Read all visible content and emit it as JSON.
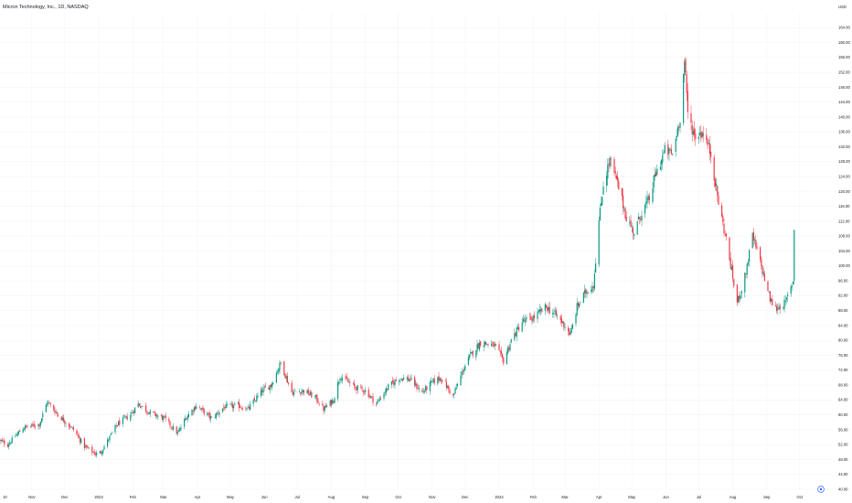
{
  "header": {
    "title": "Micron Technology, Inc., 1D, NASDAQ",
    "currency": "USD"
  },
  "colors": {
    "up": "#089981",
    "down": "#f23645",
    "background": "#ffffff",
    "grid": "#f3f4f6",
    "text": "#131722",
    "marker": "#2962ff"
  },
  "footer": {
    "marker_icon": "target-icon"
  },
  "chart_data": {
    "type": "candlestick",
    "title": "Micron Technology, Inc., 1D, NASDAQ",
    "y_axis_label": "USD",
    "ylim": [
      40,
      168
    ],
    "y_ticks": [
      "40.00",
      "44.00",
      "48.00",
      "52.00",
      "56.00",
      "60.00",
      "64.00",
      "68.00",
      "72.00",
      "76.00",
      "80.00",
      "84.00",
      "88.00",
      "92.00",
      "96.00",
      "100.00",
      "104.00",
      "108.00",
      "112.00",
      "116.00",
      "120.00",
      "124.00",
      "128.00",
      "132.00",
      "136.00",
      "140.00",
      "144.00",
      "148.00",
      "152.00",
      "156.00",
      "160.00",
      "164.00"
    ],
    "x_ticks": [
      {
        "label": "10",
        "date": "2022-10-10"
      },
      {
        "label": "Nov",
        "date": "2022-11-01"
      },
      {
        "label": "Dec",
        "date": "2022-12-01"
      },
      {
        "label": "2023",
        "date": "2023-01-01"
      },
      {
        "label": "Feb",
        "date": "2023-02-01"
      },
      {
        "label": "Mar",
        "date": "2023-03-01"
      },
      {
        "label": "Apr",
        "date": "2023-04-01"
      },
      {
        "label": "May",
        "date": "2023-05-01"
      },
      {
        "label": "Jun",
        "date": "2023-06-01"
      },
      {
        "label": "Jul",
        "date": "2023-07-01"
      },
      {
        "label": "Aug",
        "date": "2023-08-01"
      },
      {
        "label": "Sep",
        "date": "2023-09-01"
      },
      {
        "label": "Oct",
        "date": "2023-10-01"
      },
      {
        "label": "Nov",
        "date": "2023-11-01"
      },
      {
        "label": "Dec",
        "date": "2023-12-01"
      },
      {
        "label": "2024",
        "date": "2024-01-01"
      },
      {
        "label": "Feb",
        "date": "2024-02-01"
      },
      {
        "label": "Mar",
        "date": "2024-03-01"
      },
      {
        "label": "Apr",
        "date": "2024-04-01"
      },
      {
        "label": "May",
        "date": "2024-05-01"
      },
      {
        "label": "Jun",
        "date": "2024-06-01"
      },
      {
        "label": "Jul",
        "date": "2024-07-01"
      },
      {
        "label": "Aug",
        "date": "2024-08-01"
      },
      {
        "label": "Sep",
        "date": "2024-09-01"
      },
      {
        "label": "Oct",
        "date": "2024-10-01"
      }
    ],
    "close_path": [
      {
        "date": "2022-10-03",
        "close": 53.0
      },
      {
        "date": "2022-10-10",
        "close": 52.0
      },
      {
        "date": "2022-10-24",
        "close": 56.5
      },
      {
        "date": "2022-11-08",
        "close": 57.5
      },
      {
        "date": "2022-11-15",
        "close": 63.5
      },
      {
        "date": "2022-11-25",
        "close": 60.0
      },
      {
        "date": "2022-12-09",
        "close": 56.0
      },
      {
        "date": "2022-12-19",
        "close": 51.5
      },
      {
        "date": "2022-12-29",
        "close": 49.5
      },
      {
        "date": "2023-01-03",
        "close": 50.0
      },
      {
        "date": "2023-01-18",
        "close": 57.5
      },
      {
        "date": "2023-01-30",
        "close": 60.0
      },
      {
        "date": "2023-02-06",
        "close": 63.0
      },
      {
        "date": "2023-02-17",
        "close": 60.5
      },
      {
        "date": "2023-03-02",
        "close": 59.0
      },
      {
        "date": "2023-03-14",
        "close": 55.0
      },
      {
        "date": "2023-03-22",
        "close": 59.5
      },
      {
        "date": "2023-03-31",
        "close": 62.5
      },
      {
        "date": "2023-04-14",
        "close": 59.0
      },
      {
        "date": "2023-04-25",
        "close": 62.0
      },
      {
        "date": "2023-05-08",
        "close": 62.5
      },
      {
        "date": "2023-05-17",
        "close": 61.5
      },
      {
        "date": "2023-05-30",
        "close": 66.5
      },
      {
        "date": "2023-06-07",
        "close": 68.0
      },
      {
        "date": "2023-06-16",
        "close": 74.0
      },
      {
        "date": "2023-06-26",
        "close": 66.0
      },
      {
        "date": "2023-07-07",
        "close": 66.5
      },
      {
        "date": "2023-07-18",
        "close": 64.5
      },
      {
        "date": "2023-07-25",
        "close": 61.5
      },
      {
        "date": "2023-08-03",
        "close": 64.0
      },
      {
        "date": "2023-08-09",
        "close": 70.5
      },
      {
        "date": "2023-08-22",
        "close": 67.5
      },
      {
        "date": "2023-09-01",
        "close": 66.5
      },
      {
        "date": "2023-09-11",
        "close": 63.0
      },
      {
        "date": "2023-09-22",
        "close": 67.5
      },
      {
        "date": "2023-10-02",
        "close": 70.0
      },
      {
        "date": "2023-10-12",
        "close": 69.5
      },
      {
        "date": "2023-10-23",
        "close": 66.0
      },
      {
        "date": "2023-11-02",
        "close": 69.0
      },
      {
        "date": "2023-11-09",
        "close": 70.0
      },
      {
        "date": "2023-11-20",
        "close": 65.0
      },
      {
        "date": "2023-11-29",
        "close": 72.0
      },
      {
        "date": "2023-12-06",
        "close": 76.0
      },
      {
        "date": "2023-12-15",
        "close": 79.5
      },
      {
        "date": "2023-12-28",
        "close": 78.5
      },
      {
        "date": "2024-01-05",
        "close": 74.5
      },
      {
        "date": "2024-01-12",
        "close": 80.0
      },
      {
        "date": "2024-01-22",
        "close": 85.0
      },
      {
        "date": "2024-02-01",
        "close": 86.0
      },
      {
        "date": "2024-02-13",
        "close": 89.0
      },
      {
        "date": "2024-02-21",
        "close": 87.0
      },
      {
        "date": "2024-03-01",
        "close": 84.0
      },
      {
        "date": "2024-03-06",
        "close": 81.5
      },
      {
        "date": "2024-03-12",
        "close": 89.0
      },
      {
        "date": "2024-03-20",
        "close": 93.0
      },
      {
        "date": "2024-03-27",
        "close": 95.0
      },
      {
        "date": "2024-04-01",
        "close": 112.0
      },
      {
        "date": "2024-04-05",
        "close": 122.0
      },
      {
        "date": "2024-04-11",
        "close": 128.5
      },
      {
        "date": "2024-04-19",
        "close": 121.0
      },
      {
        "date": "2024-04-26",
        "close": 113.0
      },
      {
        "date": "2024-05-03",
        "close": 109.0
      },
      {
        "date": "2024-05-10",
        "close": 114.5
      },
      {
        "date": "2024-05-17",
        "close": 118.0
      },
      {
        "date": "2024-05-22",
        "close": 124.0
      },
      {
        "date": "2024-05-31",
        "close": 131.0
      },
      {
        "date": "2024-06-07",
        "close": 130.0
      },
      {
        "date": "2024-06-14",
        "close": 140.0
      },
      {
        "date": "2024-06-18",
        "close": 155.0
      },
      {
        "date": "2024-06-21",
        "close": 141.0
      },
      {
        "date": "2024-06-27",
        "close": 135.0
      },
      {
        "date": "2024-07-05",
        "close": 136.0
      },
      {
        "date": "2024-07-12",
        "close": 130.0
      },
      {
        "date": "2024-07-19",
        "close": 117.0
      },
      {
        "date": "2024-07-26",
        "close": 107.0
      },
      {
        "date": "2024-08-05",
        "close": 90.0
      },
      {
        "date": "2024-08-12",
        "close": 97.0
      },
      {
        "date": "2024-08-19",
        "close": 108.0
      },
      {
        "date": "2024-08-26",
        "close": 101.0
      },
      {
        "date": "2024-09-04",
        "close": 91.0
      },
      {
        "date": "2024-09-09",
        "close": 88.5
      },
      {
        "date": "2024-09-18",
        "close": 90.0
      },
      {
        "date": "2024-09-25",
        "close": 96.0
      },
      {
        "date": "2024-09-26",
        "close": 110.0
      }
    ]
  }
}
